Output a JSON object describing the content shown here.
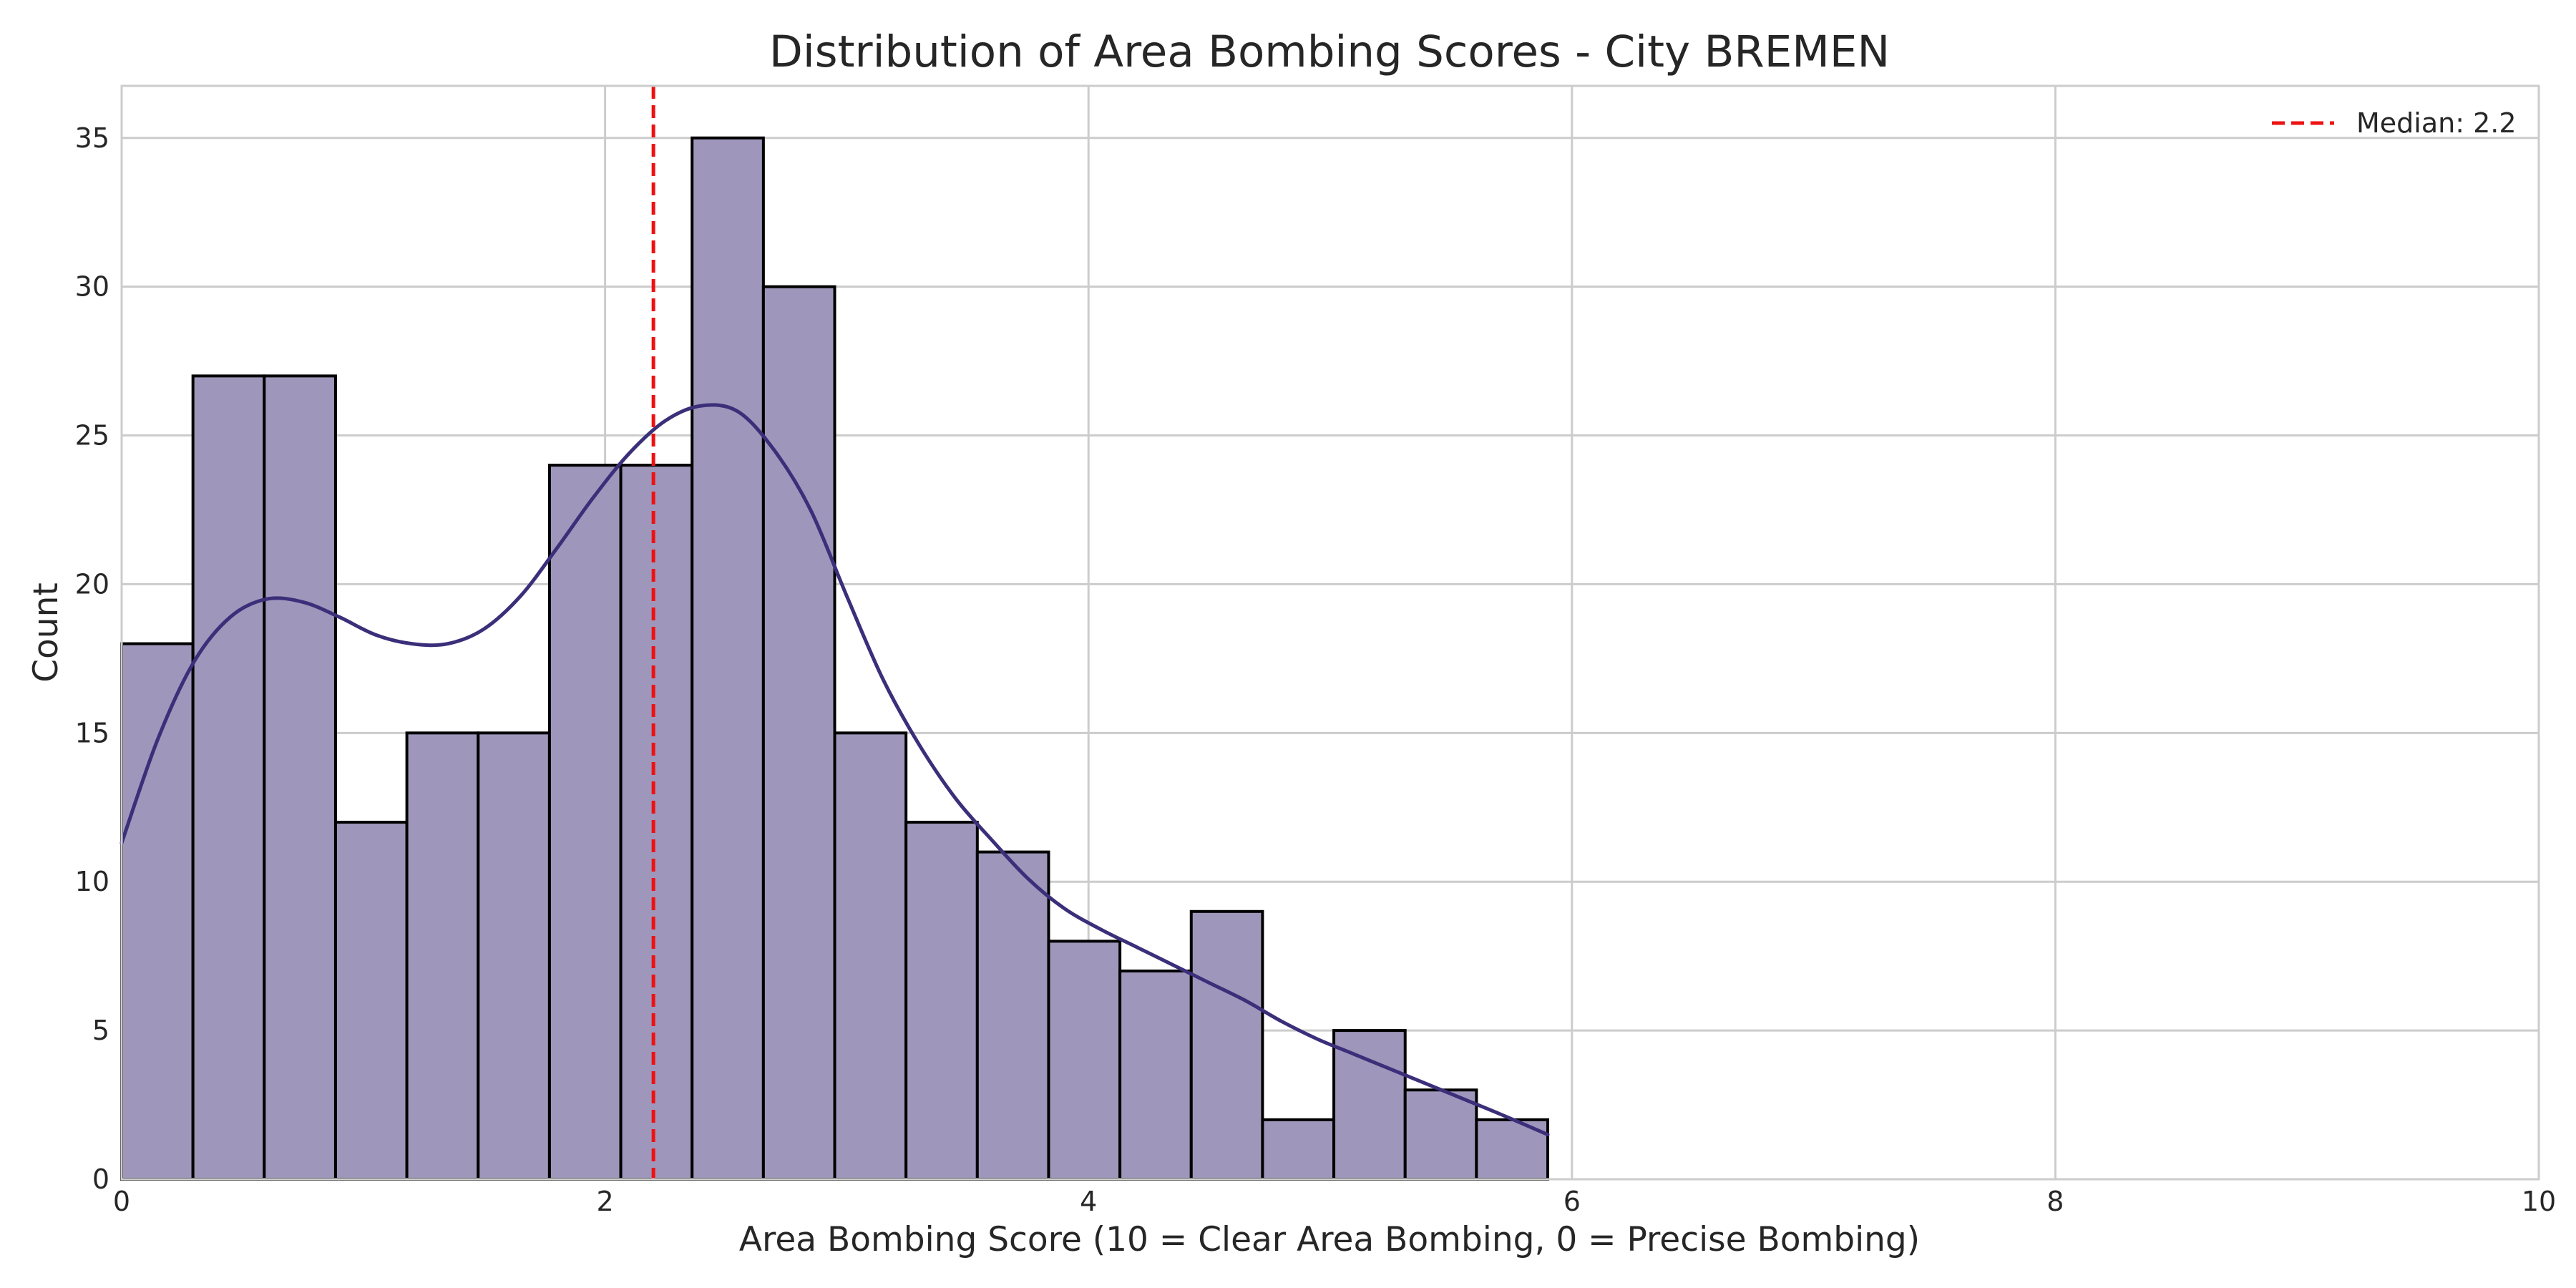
{
  "chart_data": {
    "type": "bar",
    "title": "Distribution of Area Bombing Scores - City BREMEN",
    "xlabel": "Area Bombing Score (10 = Clear Area Bombing, 0 = Precise Bombing)",
    "ylabel": "Count",
    "xlim": [
      0,
      10
    ],
    "ylim": [
      0,
      36.75
    ],
    "x_ticks": [
      0,
      2,
      4,
      6,
      8,
      10
    ],
    "y_ticks": [
      0,
      5,
      10,
      15,
      20,
      25,
      30,
      35
    ],
    "grid": true,
    "legend_position": "top-right",
    "bins": [
      {
        "x0": 0.0,
        "x1": 0.295,
        "count": 18
      },
      {
        "x0": 0.295,
        "x1": 0.59,
        "count": 27
      },
      {
        "x0": 0.59,
        "x1": 0.885,
        "count": 27
      },
      {
        "x0": 0.885,
        "x1": 1.18,
        "count": 12
      },
      {
        "x0": 1.18,
        "x1": 1.475,
        "count": 15
      },
      {
        "x0": 1.475,
        "x1": 1.77,
        "count": 15
      },
      {
        "x0": 1.77,
        "x1": 2.065,
        "count": 24
      },
      {
        "x0": 2.065,
        "x1": 2.36,
        "count": 24
      },
      {
        "x0": 2.36,
        "x1": 2.655,
        "count": 35
      },
      {
        "x0": 2.655,
        "x1": 2.95,
        "count": 30
      },
      {
        "x0": 2.95,
        "x1": 3.245,
        "count": 15
      },
      {
        "x0": 3.245,
        "x1": 3.54,
        "count": 12
      },
      {
        "x0": 3.54,
        "x1": 3.835,
        "count": 11
      },
      {
        "x0": 3.835,
        "x1": 4.13,
        "count": 8
      },
      {
        "x0": 4.13,
        "x1": 4.425,
        "count": 7
      },
      {
        "x0": 4.425,
        "x1": 4.72,
        "count": 9
      },
      {
        "x0": 4.72,
        "x1": 5.015,
        "count": 2
      },
      {
        "x0": 5.015,
        "x1": 5.31,
        "count": 5
      },
      {
        "x0": 5.31,
        "x1": 5.605,
        "count": 3
      },
      {
        "x0": 5.605,
        "x1": 5.9,
        "count": 2
      }
    ],
    "kde": {
      "x": [
        0.0,
        0.15,
        0.3,
        0.45,
        0.6,
        0.75,
        0.9,
        1.05,
        1.2,
        1.35,
        1.5,
        1.65,
        1.8,
        1.95,
        2.1,
        2.25,
        2.4,
        2.55,
        2.7,
        2.85,
        3.0,
        3.15,
        3.3,
        3.45,
        3.6,
        3.75,
        3.9,
        4.05,
        4.2,
        4.35,
        4.5,
        4.65,
        4.8,
        4.95,
        5.1,
        5.25,
        5.4,
        5.55,
        5.7,
        5.9
      ],
      "y": [
        11.3,
        14.8,
        17.4,
        18.9,
        19.5,
        19.4,
        18.9,
        18.3,
        18.0,
        18.0,
        18.5,
        19.6,
        21.2,
        22.9,
        24.4,
        25.5,
        26.0,
        25.8,
        24.5,
        22.5,
        19.6,
        16.8,
        14.6,
        12.8,
        11.4,
        10.1,
        9.1,
        8.4,
        7.8,
        7.2,
        6.6,
        6.0,
        5.3,
        4.7,
        4.2,
        3.7,
        3.2,
        2.7,
        2.2,
        1.5
      ],
      "color": "#3b2f7a"
    },
    "median": 2.2,
    "legend": [
      {
        "label": "Median: 2.2",
        "color": "#ee1111",
        "style": "dashed"
      }
    ],
    "colors": {
      "bar_fill": "#9f97bb",
      "bar_edge": "#000000",
      "kde_line": "#3b2f7a",
      "median_line": "#ee1111",
      "grid": "#cccccc"
    }
  }
}
